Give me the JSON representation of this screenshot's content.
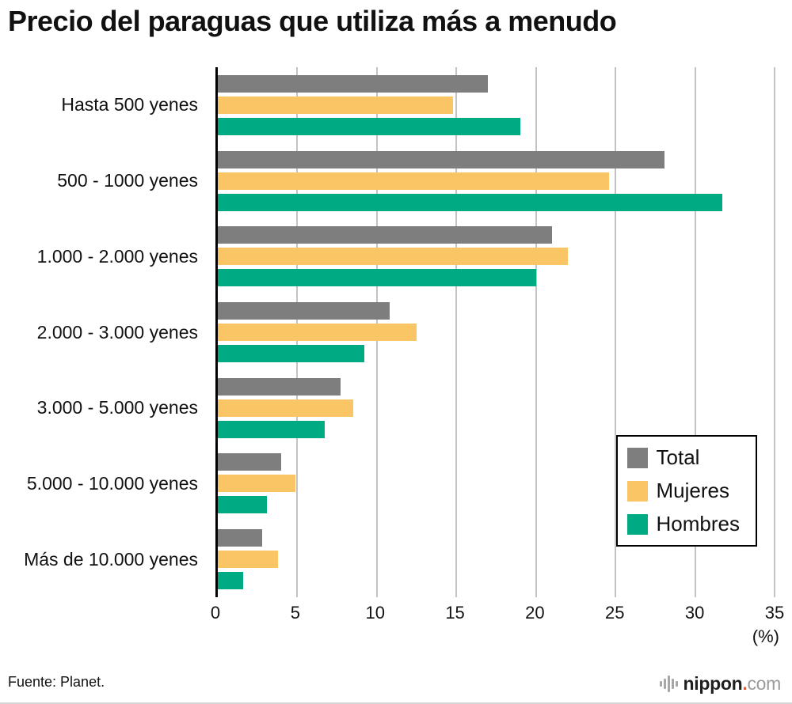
{
  "title": "Precio del paraguas que utiliza más a menudo",
  "source": "Fuente: Planet.",
  "logo": {
    "icon": "audio-bars-icon",
    "name": "nippon",
    "dot": ".",
    "tld": "com",
    "name_color": "#1f1f1f",
    "dot_color": "#f0541e",
    "tld_color": "#9b9b9b"
  },
  "chart_data": {
    "type": "bar",
    "orientation": "horizontal",
    "title": "Precio del paraguas que utiliza más a menudo",
    "categories": [
      "Hasta 500 yenes",
      "500 - 1000 yenes",
      "1.000 - 2.000 yenes",
      "2.000 - 3.000 yenes",
      "3.000 - 5.000 yenes",
      "5.000 - 10.000 yenes",
      "Más de 10.000 yenes"
    ],
    "series": [
      {
        "name": "Total",
        "color": "#7e7e7e",
        "values": [
          17.0,
          28.1,
          21.0,
          10.8,
          7.7,
          4.0,
          2.8
        ]
      },
      {
        "name": "Mujeres",
        "color": "#fac564",
        "values": [
          14.8,
          24.6,
          22.0,
          12.5,
          8.5,
          4.9,
          3.8
        ]
      },
      {
        "name": "Hombres",
        "color": "#00ab84",
        "values": [
          19.0,
          31.7,
          20.0,
          9.2,
          6.7,
          3.1,
          1.6
        ]
      }
    ],
    "xlabel": "(%)",
    "ylabel": "",
    "x_ticks": [
      0,
      5,
      10,
      15,
      20,
      25,
      30,
      35
    ],
    "xlim": [
      0,
      35
    ],
    "grid": true,
    "grid_color": "#c3c3c3",
    "axis_color": "#000000",
    "legend_position": "inside-bottom-right"
  }
}
